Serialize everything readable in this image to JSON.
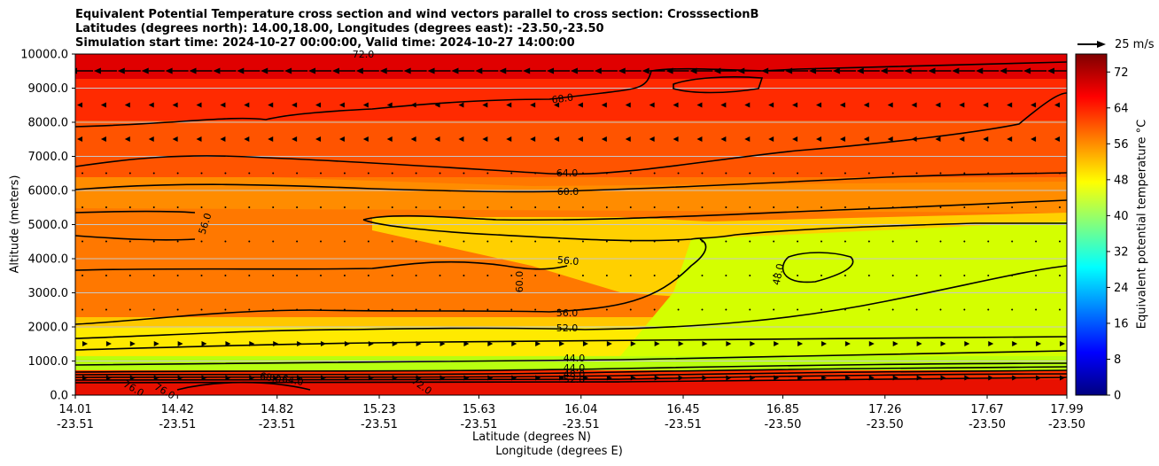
{
  "chart_data": {
    "type": "heatmap",
    "title_lines": [
      "Equivalent Potential Temperature cross section and wind vectors parallel to cross section: CrosssectionB",
      "Latitudes (degrees north): 14.00,18.00, Longitudes (degrees east): -23.50,-23.50",
      "Simulation start time: 2024-10-27 00:00:00, Valid time: 2024-10-27 14:00:00"
    ],
    "ylabel": "Altitude (meters)",
    "xlabel_lat": "Latitude (degrees N)",
    "xlabel_lon": "Longitude (degrees E)",
    "colorbar_label": "Equivalent potential temperature °C",
    "reference_vector_label": "25 m/s",
    "ylim": [
      0,
      10000
    ],
    "yticks": [
      "0.0",
      "1000.0",
      "2000.0",
      "3000.0",
      "4000.0",
      "5000.0",
      "6000.0",
      "7000.0",
      "8000.0",
      "9000.0",
      "10000.0"
    ],
    "xticks": [
      {
        "lat": "14.01",
        "lon": "-23.51"
      },
      {
        "lat": "14.42",
        "lon": "-23.51"
      },
      {
        "lat": "14.82",
        "lon": "-23.51"
      },
      {
        "lat": "15.23",
        "lon": "-23.51"
      },
      {
        "lat": "15.63",
        "lon": "-23.51"
      },
      {
        "lat": "16.04",
        "lon": "-23.51"
      },
      {
        "lat": "16.45",
        "lon": "-23.51"
      },
      {
        "lat": "16.85",
        "lon": "-23.50"
      },
      {
        "lat": "17.26",
        "lon": "-23.50"
      },
      {
        "lat": "17.67",
        "lon": "-23.50"
      },
      {
        "lat": "17.99",
        "lon": "-23.50"
      }
    ],
    "colorbar_range": [
      0,
      76
    ],
    "colorbar_ticks": [
      "0",
      "8",
      "16",
      "24",
      "32",
      "40",
      "48",
      "56",
      "64",
      "72"
    ],
    "contour_labels": [
      "72.0",
      "68.0",
      "64.0",
      "60.0",
      "56.0",
      "56.0",
      "60.0",
      "56.0",
      "52.0",
      "48.0",
      "44.0",
      "44.0",
      "48.0",
      "52.0",
      "76.0",
      "76.0",
      "68.0",
      "64.0",
      "72.0"
    ],
    "colors": {
      "grid": "#c8c8c8",
      "contour": "#000000"
    },
    "grid": true
  }
}
